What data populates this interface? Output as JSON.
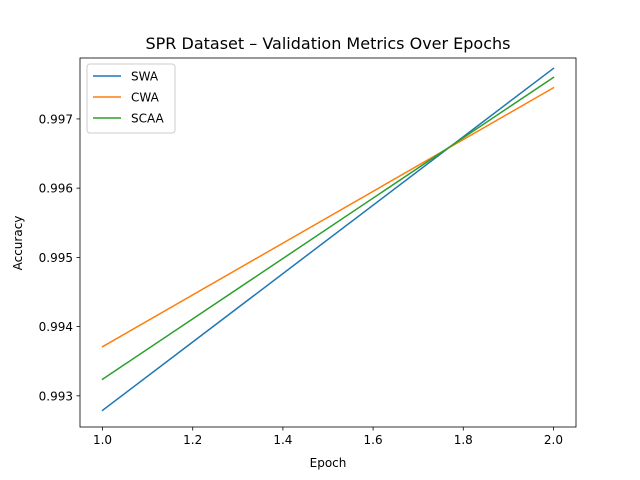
{
  "chart_data": {
    "type": "line",
    "title": "SPR Dataset – Validation Metrics Over Epochs",
    "xlabel": "Epoch",
    "ylabel": "Accuracy",
    "xlim": [
      0.95,
      2.05
    ],
    "ylim": [
      0.99255,
      0.99788
    ],
    "xticks": [
      "1.0",
      "1.2",
      "1.4",
      "1.6",
      "1.8",
      "2.0"
    ],
    "yticks": [
      "0.993",
      "0.994",
      "0.995",
      "0.996",
      "0.997"
    ],
    "grid": false,
    "legend_position": "top-left",
    "x": [
      1.0,
      2.0
    ],
    "series": [
      {
        "name": "SWA",
        "color": "#1f77b4",
        "values": [
          0.99279,
          0.99773
        ]
      },
      {
        "name": "CWA",
        "color": "#ff7f0e",
        "values": [
          0.99371,
          0.99745
        ]
      },
      {
        "name": "SCAA",
        "color": "#2ca02c",
        "values": [
          0.99324,
          0.9976
        ]
      }
    ]
  }
}
